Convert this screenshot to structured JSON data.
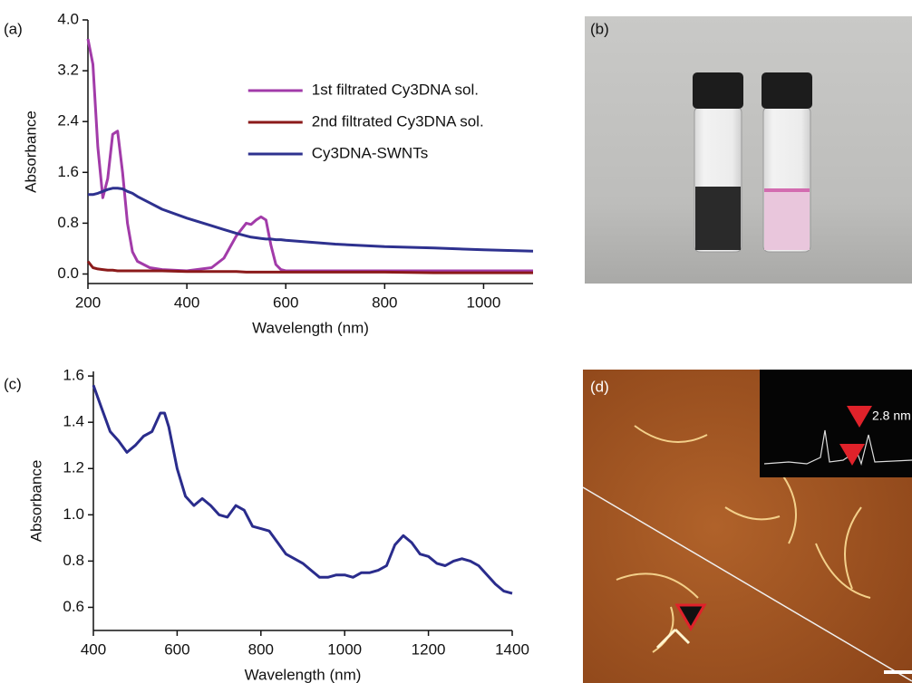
{
  "panel_labels": [
    "(a)",
    "(b)",
    "(c)",
    "(d)"
  ],
  "afm_inset_label": "2.8 nm",
  "chart_data": [
    {
      "type": "line",
      "x_label": "Wavelength (nm)",
      "y_label": "Absorbance",
      "x": [
        200,
        210,
        220,
        230,
        240,
        250,
        260,
        270,
        280,
        290,
        300,
        325,
        350,
        400,
        450,
        475,
        500,
        520,
        530,
        540,
        550,
        560,
        570,
        580,
        590,
        600,
        700,
        800,
        900,
        1000,
        1100
      ],
      "series": [
        {
          "name": "1st filtrated Cy3DNA sol.",
          "color": "#a23ba9",
          "values": [
            3.7,
            3.3,
            2.0,
            1.2,
            1.5,
            2.2,
            2.25,
            1.6,
            0.8,
            0.35,
            0.2,
            0.1,
            0.07,
            0.05,
            0.1,
            0.25,
            0.6,
            0.8,
            0.78,
            0.85,
            0.9,
            0.85,
            0.45,
            0.15,
            0.07,
            0.05,
            0.05,
            0.05,
            0.05,
            0.05,
            0.05
          ]
        },
        {
          "name": "2nd filtrated Cy3DNA sol.",
          "color": "#8b1a1a",
          "values": [
            0.2,
            0.1,
            0.08,
            0.07,
            0.06,
            0.06,
            0.05,
            0.05,
            0.05,
            0.05,
            0.05,
            0.05,
            0.05,
            0.04,
            0.04,
            0.04,
            0.04,
            0.03,
            0.03,
            0.03,
            0.03,
            0.03,
            0.03,
            0.03,
            0.03,
            0.03,
            0.03,
            0.03,
            0.02,
            0.02,
            0.02
          ]
        },
        {
          "name": "Cy3DNA-SWNTs",
          "color": "#2e318f",
          "values": [
            1.25,
            1.25,
            1.27,
            1.3,
            1.33,
            1.35,
            1.35,
            1.34,
            1.3,
            1.27,
            1.22,
            1.12,
            1.02,
            0.88,
            0.76,
            0.7,
            0.64,
            0.6,
            0.58,
            0.57,
            0.56,
            0.55,
            0.55,
            0.54,
            0.54,
            0.53,
            0.47,
            0.43,
            0.41,
            0.38,
            0.36
          ]
        }
      ],
      "xlim": [
        200,
        1100
      ],
      "ylim": [
        -0.15,
        4.0
      ],
      "xticks": [
        200,
        400,
        600,
        800,
        1000
      ],
      "yticks": [
        {
          "value": 0.0,
          "label": "0.0"
        },
        0.8,
        1.6,
        2.4,
        3.2,
        {
          "value": 4.0,
          "label": "4.0"
        }
      ],
      "legend": "upper right"
    },
    {
      "type": "line",
      "x_label": "Wavelength (nm)",
      "y_label": "Absorbance",
      "x": [
        400,
        420,
        440,
        460,
        480,
        500,
        520,
        540,
        560,
        570,
        580,
        600,
        620,
        640,
        660,
        680,
        700,
        720,
        740,
        760,
        780,
        800,
        820,
        840,
        860,
        880,
        900,
        920,
        940,
        960,
        980,
        1000,
        1020,
        1040,
        1060,
        1080,
        1100,
        1120,
        1140,
        1160,
        1180,
        1200,
        1220,
        1240,
        1260,
        1280,
        1300,
        1320,
        1340,
        1360,
        1380,
        1400
      ],
      "series": [
        {
          "color": "#2a2c8c",
          "values": [
            1.56,
            1.46,
            1.36,
            1.32,
            1.27,
            1.3,
            1.34,
            1.36,
            1.44,
            1.44,
            1.38,
            1.2,
            1.08,
            1.04,
            1.07,
            1.04,
            1.0,
            0.99,
            1.04,
            1.02,
            0.95,
            0.94,
            0.93,
            0.88,
            0.83,
            0.81,
            0.79,
            0.76,
            0.73,
            0.73,
            0.74,
            0.74,
            0.73,
            0.75,
            0.75,
            0.76,
            0.78,
            0.87,
            0.91,
            0.88,
            0.83,
            0.82,
            0.79,
            0.78,
            0.8,
            0.81,
            0.8,
            0.78,
            0.74,
            0.7,
            0.67,
            0.66
          ]
        }
      ],
      "xlim": [
        400,
        1400
      ],
      "ylim": [
        0.5,
        1.62
      ],
      "xticks": [
        400,
        600,
        800,
        1000,
        1200,
        1400
      ],
      "yticks": [
        0.6,
        0.8,
        {
          "value": 1.0,
          "label": "1.0"
        },
        1.2,
        1.4,
        1.6
      ]
    }
  ]
}
